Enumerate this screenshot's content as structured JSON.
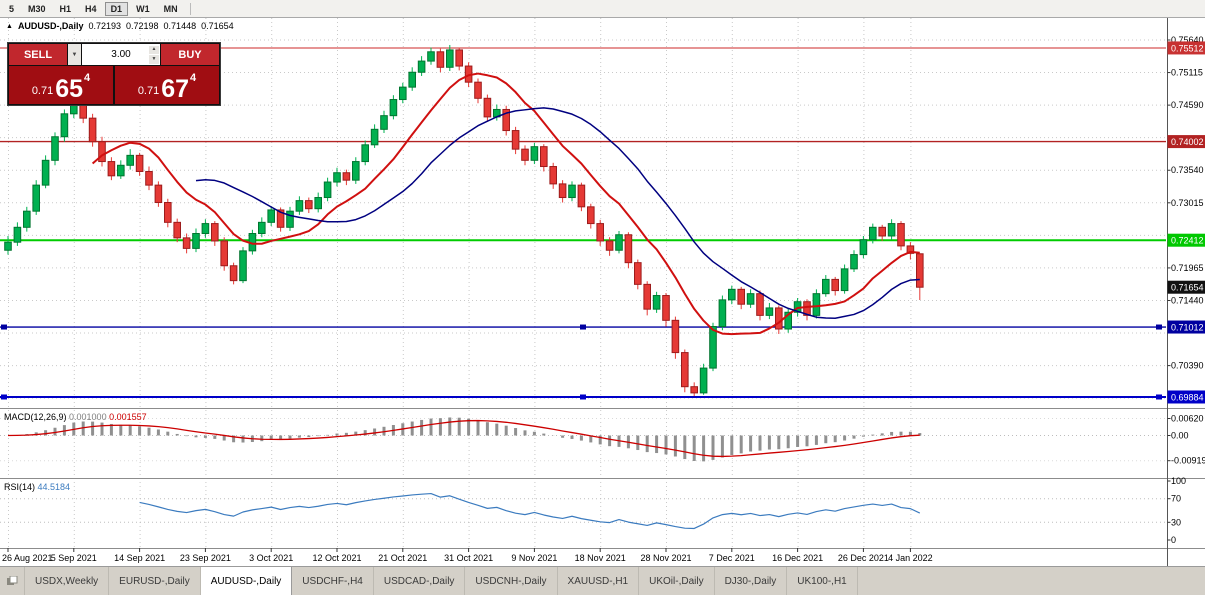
{
  "window": {
    "toolbar_periods": [
      {
        "label": "5",
        "active": false
      },
      {
        "label": "M30",
        "active": false
      },
      {
        "label": "H1",
        "active": false
      },
      {
        "label": "H4",
        "active": false
      },
      {
        "label": "D1",
        "active": true
      },
      {
        "label": "W1",
        "active": false
      },
      {
        "label": "MN",
        "active": false
      }
    ]
  },
  "header": {
    "marker": "▲",
    "symbol": "AUDUSD-,Daily",
    "open": "0.72193",
    "high": "0.72198",
    "low": "0.71448",
    "close": "0.71654"
  },
  "trade_panel": {
    "sell_label": "SELL",
    "buy_label": "BUY",
    "volume": "3.00",
    "sell_price": {
      "small": "0.71",
      "big": "65",
      "sup": "4"
    },
    "buy_price": {
      "small": "0.71",
      "big": "67",
      "sup": "4"
    }
  },
  "chart_data": {
    "type": "candlestick",
    "symbol": "AUDUSD-",
    "timeframe": "Daily",
    "colors": {
      "up": "#00b050",
      "up_stroke": "#00752f",
      "down": "#e53935",
      "down_stroke": "#9c1c1c",
      "ma_fast": "#d01010",
      "ma_slow": "#000080",
      "grid": "#c9c9c9",
      "macd_hist": "#909090",
      "macd_signal": "#cc0000",
      "rsi": "#3b7bbf",
      "axis_line": "#555555",
      "separator": "#8c8c8c"
    },
    "price_axis": {
      "plain_ticks": [
        {
          "label": "0.75640",
          "value": 0.7564
        },
        {
          "label": "0.75115",
          "value": 0.75115
        },
        {
          "label": "0.74590",
          "value": 0.7459
        },
        {
          "label": "0.73540",
          "value": 0.7354
        },
        {
          "label": "0.73015",
          "value": 0.73015
        },
        {
          "label": "0.71965",
          "value": 0.71965
        },
        {
          "label": "0.71440",
          "value": 0.7144
        },
        {
          "label": "0.70390",
          "value": 0.7039
        }
      ],
      "badges": [
        {
          "label": "0.75512",
          "value": 0.75512,
          "bg": "#c83232",
          "fg": "#ffffff"
        },
        {
          "label": "0.74002",
          "value": 0.74002,
          "bg": "#b22222",
          "fg": "#ffffff"
        },
        {
          "label": "0.72412",
          "value": 0.72412,
          "bg": "#00c800",
          "fg": "#ffffff"
        },
        {
          "label": "0.71654",
          "value": 0.71654,
          "bg": "#111111",
          "fg": "#ffffff"
        },
        {
          "label": "0.71012",
          "value": 0.71012,
          "bg": "#0000a0",
          "fg": "#ffffff"
        },
        {
          "label": "0.69884",
          "value": 0.69884,
          "bg": "#0000c8",
          "fg": "#ffffff"
        }
      ]
    },
    "levels": [
      {
        "price": 0.75512,
        "color": "#cc2828",
        "width": 1,
        "handles": false
      },
      {
        "price": 0.74002,
        "color": "#b22222",
        "width": 1.4,
        "handles": false
      },
      {
        "price": 0.72412,
        "color": "#00cc00",
        "width": 2,
        "handles": false
      },
      {
        "price": 0.71012,
        "color": "#0000a0",
        "width": 1.4,
        "handles": true
      },
      {
        "price": 0.69884,
        "color": "#0000c8",
        "width": 2,
        "handles": true
      }
    ],
    "x_axis": {
      "ticks": [
        {
          "i": 0,
          "label": "26 Aug 2021"
        },
        {
          "i": 7,
          "label": "5 Sep 2021"
        },
        {
          "i": 14,
          "label": "14 Sep 2021"
        },
        {
          "i": 21,
          "label": "23 Sep 2021"
        },
        {
          "i": 28,
          "label": "3 Oct 2021"
        },
        {
          "i": 35,
          "label": "12 Oct 2021"
        },
        {
          "i": 42,
          "label": "21 Oct 2021"
        },
        {
          "i": 49,
          "label": "31 Oct 2021"
        },
        {
          "i": 56,
          "label": "9 Nov 2021"
        },
        {
          "i": 63,
          "label": "18 Nov 2021"
        },
        {
          "i": 70,
          "label": "28 Nov 2021"
        },
        {
          "i": 77,
          "label": "7 Dec 2021"
        },
        {
          "i": 84,
          "label": "16 Dec 2021"
        },
        {
          "i": 91,
          "label": "26 Dec 2021"
        },
        {
          "i": 96,
          "label": "4 Jan 2022"
        }
      ]
    },
    "candles": [
      [
        0.7225,
        0.7248,
        0.7218,
        0.7238
      ],
      [
        0.7238,
        0.727,
        0.7232,
        0.7262
      ],
      [
        0.7262,
        0.7295,
        0.7255,
        0.7288
      ],
      [
        0.7288,
        0.7338,
        0.7282,
        0.733
      ],
      [
        0.733,
        0.7378,
        0.7325,
        0.737
      ],
      [
        0.737,
        0.7415,
        0.7362,
        0.7408
      ],
      [
        0.7408,
        0.7452,
        0.74,
        0.7445
      ],
      [
        0.7445,
        0.7478,
        0.7438,
        0.747
      ],
      [
        0.747,
        0.7475,
        0.743,
        0.7438
      ],
      [
        0.7438,
        0.7445,
        0.7392,
        0.74
      ],
      [
        0.74,
        0.7408,
        0.736,
        0.7368
      ],
      [
        0.7368,
        0.7375,
        0.7338,
        0.7345
      ],
      [
        0.7345,
        0.737,
        0.734,
        0.7362
      ],
      [
        0.7362,
        0.7388,
        0.7355,
        0.7378
      ],
      [
        0.7378,
        0.7382,
        0.7345,
        0.7352
      ],
      [
        0.7352,
        0.736,
        0.7322,
        0.733
      ],
      [
        0.733,
        0.7336,
        0.7295,
        0.7302
      ],
      [
        0.7302,
        0.7308,
        0.7262,
        0.727
      ],
      [
        0.727,
        0.7276,
        0.7238,
        0.7245
      ],
      [
        0.7245,
        0.7252,
        0.722,
        0.7228
      ],
      [
        0.7228,
        0.726,
        0.7222,
        0.7252
      ],
      [
        0.7252,
        0.7275,
        0.7245,
        0.7268
      ],
      [
        0.7268,
        0.7272,
        0.7232,
        0.724
      ],
      [
        0.724,
        0.7246,
        0.7192,
        0.72
      ],
      [
        0.72,
        0.7205,
        0.717,
        0.7176
      ],
      [
        0.7176,
        0.723,
        0.7172,
        0.7224
      ],
      [
        0.7224,
        0.7258,
        0.7218,
        0.7252
      ],
      [
        0.7252,
        0.7278,
        0.7246,
        0.727
      ],
      [
        0.727,
        0.7296,
        0.7264,
        0.729
      ],
      [
        0.729,
        0.7294,
        0.7255,
        0.7262
      ],
      [
        0.7262,
        0.7295,
        0.7256,
        0.7288
      ],
      [
        0.7288,
        0.7312,
        0.7282,
        0.7305
      ],
      [
        0.7305,
        0.731,
        0.7285,
        0.7292
      ],
      [
        0.7292,
        0.7318,
        0.7286,
        0.731
      ],
      [
        0.731,
        0.7342,
        0.7304,
        0.7335
      ],
      [
        0.7335,
        0.7358,
        0.7328,
        0.735
      ],
      [
        0.735,
        0.7355,
        0.733,
        0.7338
      ],
      [
        0.7338,
        0.7375,
        0.7332,
        0.7368
      ],
      [
        0.7368,
        0.7402,
        0.7362,
        0.7395
      ],
      [
        0.7395,
        0.7428,
        0.739,
        0.742
      ],
      [
        0.742,
        0.745,
        0.7414,
        0.7442
      ],
      [
        0.7442,
        0.7475,
        0.7436,
        0.7468
      ],
      [
        0.7468,
        0.7495,
        0.7462,
        0.7488
      ],
      [
        0.7488,
        0.752,
        0.7482,
        0.7512
      ],
      [
        0.7512,
        0.7538,
        0.7506,
        0.753
      ],
      [
        0.753,
        0.7552,
        0.7524,
        0.7545
      ],
      [
        0.7545,
        0.755,
        0.7512,
        0.752
      ],
      [
        0.752,
        0.7556,
        0.7514,
        0.7548
      ],
      [
        0.7548,
        0.7552,
        0.7515,
        0.7522
      ],
      [
        0.7522,
        0.7528,
        0.7488,
        0.7496
      ],
      [
        0.7496,
        0.7502,
        0.7462,
        0.747
      ],
      [
        0.747,
        0.7476,
        0.7432,
        0.744
      ],
      [
        0.744,
        0.746,
        0.7434,
        0.7452
      ],
      [
        0.7452,
        0.7458,
        0.741,
        0.7418
      ],
      [
        0.7418,
        0.7424,
        0.738,
        0.7388
      ],
      [
        0.7388,
        0.7394,
        0.7362,
        0.737
      ],
      [
        0.737,
        0.7398,
        0.7364,
        0.7392
      ],
      [
        0.7392,
        0.7396,
        0.7352,
        0.736
      ],
      [
        0.736,
        0.7366,
        0.7324,
        0.7332
      ],
      [
        0.7332,
        0.7338,
        0.7302,
        0.731
      ],
      [
        0.731,
        0.7336,
        0.7304,
        0.733
      ],
      [
        0.733,
        0.7334,
        0.7288,
        0.7295
      ],
      [
        0.7295,
        0.73,
        0.726,
        0.7268
      ],
      [
        0.7268,
        0.7274,
        0.7232,
        0.724
      ],
      [
        0.724,
        0.7246,
        0.7216,
        0.7225
      ],
      [
        0.7225,
        0.7256,
        0.722,
        0.725
      ],
      [
        0.725,
        0.7254,
        0.7196,
        0.7205
      ],
      [
        0.7205,
        0.721,
        0.7162,
        0.717
      ],
      [
        0.717,
        0.7175,
        0.712,
        0.713
      ],
      [
        0.713,
        0.7158,
        0.7124,
        0.7152
      ],
      [
        0.7152,
        0.7156,
        0.7102,
        0.7112
      ],
      [
        0.7112,
        0.7118,
        0.705,
        0.706
      ],
      [
        0.706,
        0.7065,
        0.6996,
        0.7005
      ],
      [
        0.7005,
        0.7012,
        0.699,
        0.6995
      ],
      [
        0.6995,
        0.7042,
        0.6992,
        0.7035
      ],
      [
        0.7035,
        0.7108,
        0.703,
        0.7102
      ],
      [
        0.7102,
        0.7152,
        0.7096,
        0.7145
      ],
      [
        0.7145,
        0.7168,
        0.7138,
        0.7162
      ],
      [
        0.7162,
        0.7166,
        0.713,
        0.7138
      ],
      [
        0.7138,
        0.7162,
        0.7132,
        0.7155
      ],
      [
        0.7155,
        0.716,
        0.7112,
        0.712
      ],
      [
        0.712,
        0.714,
        0.7114,
        0.7132
      ],
      [
        0.7132,
        0.7136,
        0.709,
        0.7098
      ],
      [
        0.7098,
        0.7132,
        0.7092,
        0.7125
      ],
      [
        0.7125,
        0.7148,
        0.7118,
        0.7142
      ],
      [
        0.7142,
        0.7146,
        0.7112,
        0.712
      ],
      [
        0.712,
        0.7162,
        0.7115,
        0.7155
      ],
      [
        0.7155,
        0.7185,
        0.715,
        0.7178
      ],
      [
        0.7178,
        0.7182,
        0.7152,
        0.716
      ],
      [
        0.716,
        0.7202,
        0.7155,
        0.7195
      ],
      [
        0.7195,
        0.7225,
        0.719,
        0.7218
      ],
      [
        0.7218,
        0.7248,
        0.7212,
        0.7242
      ],
      [
        0.7242,
        0.7268,
        0.7236,
        0.7262
      ],
      [
        0.7262,
        0.7266,
        0.724,
        0.7248
      ],
      [
        0.7248,
        0.7275,
        0.7242,
        0.7268
      ],
      [
        0.7268,
        0.7272,
        0.7225,
        0.7232
      ],
      [
        0.7232,
        0.7238,
        0.721,
        0.722
      ],
      [
        0.72193,
        0.72198,
        0.71448,
        0.71654
      ]
    ],
    "indicators": {
      "ma": [
        {
          "type": "sma",
          "period": 10,
          "color": "#d01010",
          "width": 2
        },
        {
          "type": "sma",
          "period": 21,
          "color": "#000080",
          "width": 1.5
        }
      ],
      "macd": {
        "name": "MACD(12,26,9)",
        "fast": 12,
        "slow": 26,
        "signal": 9,
        "value_main": "0.001000",
        "value_signal": "0.001557",
        "axis": [
          {
            "label": "0.00620",
            "value": 0.0062
          },
          {
            "label": "0.00",
            "value": 0
          },
          {
            "label": "-0.00919",
            "value": -0.00919
          }
        ]
      },
      "rsi": {
        "name": "RSI(14)",
        "period": 14,
        "value": "44.5184",
        "axis": [
          {
            "label": "100",
            "value": 100
          },
          {
            "label": "70",
            "value": 70
          },
          {
            "label": "30",
            "value": 30
          },
          {
            "label": "0",
            "value": 0
          }
        ],
        "levels": [
          70,
          30
        ]
      }
    }
  },
  "tabs": {
    "items": [
      {
        "label": "USDX,Weekly",
        "active": false
      },
      {
        "label": "EURUSD-,Daily",
        "active": false
      },
      {
        "label": "AUDUSD-,Daily",
        "active": true
      },
      {
        "label": "USDCHF-,H4",
        "active": false
      },
      {
        "label": "USDCAD-,Daily",
        "active": false
      },
      {
        "label": "USDCNH-,Daily",
        "active": false
      },
      {
        "label": "XAUUSD-,H1",
        "active": false
      },
      {
        "label": "UKOil-,Daily",
        "active": false
      },
      {
        "label": "DJ30-,Daily",
        "active": false
      },
      {
        "label": "UK100-,H1",
        "active": false
      }
    ]
  }
}
